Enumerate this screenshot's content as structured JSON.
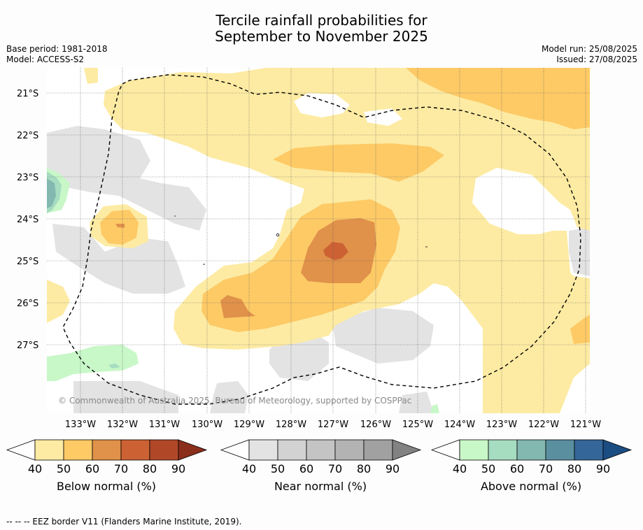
{
  "title_line1": "Tercile rainfall probabilities for",
  "title_line2": "September to November 2025",
  "base_period": "Base period: 1981-2018",
  "model": "Model: ACCESS-S2",
  "model_run": "Model run: 25/08/2025",
  "issued": "Issued: 27/08/2025",
  "lat_labels": [
    "21°S",
    "22°S",
    "23°S",
    "24°S",
    "25°S",
    "26°S",
    "27°S"
  ],
  "lon_labels": [
    "133°W",
    "132°W",
    "131°W",
    "130°W",
    "129°W",
    "128°W",
    "127°W",
    "126°W",
    "125°W",
    "124°W",
    "123°W",
    "122°W",
    "121°W"
  ],
  "watermark": "© Commonwealth of Australia 2025, Bureau of Meteorology, supported by COSPPac",
  "colorbars": [
    {
      "label": "Below normal (%)",
      "ticks": [
        "40",
        "50",
        "60",
        "70",
        "80",
        "90"
      ],
      "colors": [
        "#fdeba3",
        "#fdca66",
        "#e0914a",
        "#cc6234",
        "#b04828",
        "#8b2e1c"
      ]
    },
    {
      "label": "Near normal (%)",
      "ticks": [
        "40",
        "50",
        "60",
        "70",
        "80",
        "90"
      ],
      "colors": [
        "#e3e3e3",
        "#d2d2d2",
        "#c4c4c4",
        "#b3b3b3",
        "#a1a1a1",
        "#828282"
      ]
    },
    {
      "label": "Above normal (%)",
      "ticks": [
        "40",
        "50",
        "60",
        "70",
        "80",
        "90"
      ],
      "colors": [
        "#c8f7c8",
        "#a6dcc0",
        "#82b8b0",
        "#5a8fa0",
        "#35669a",
        "#1b4d82"
      ]
    }
  ],
  "footnote": "--  --  -- EEZ border V11 (Flanders Marine Institute, 2019)."
}
